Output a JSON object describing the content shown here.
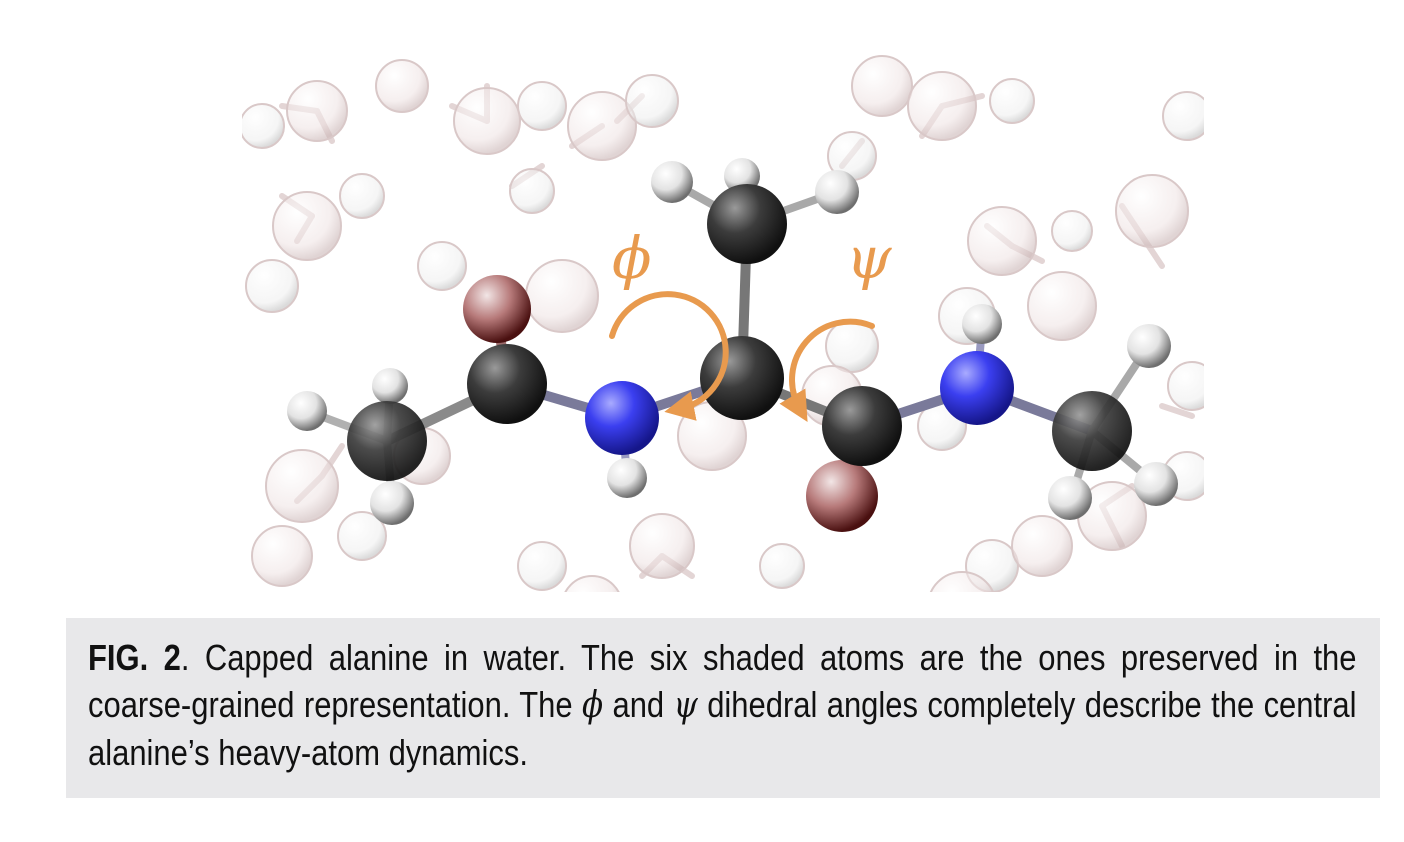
{
  "figure": {
    "phi_symbol": "ϕ",
    "psi_symbol": "ψ",
    "colors": {
      "carbon": "#3a3a3a",
      "nitrogen": "#3b3ff0",
      "oxygen": "#8a3a3a",
      "hydrogen": "#e6e6e6",
      "water": "#e9dcdc",
      "dihedral_arrow": "#e89a4e"
    }
  },
  "caption": {
    "label": "FIG. 2",
    "part1": ". Capped alanine in water. The six shaded atoms are the ones preserved in the coarse-grained representation. The ",
    "phi": "ϕ",
    "part2": " and ",
    "psi": "ψ",
    "part3": " dihedral angles completely describe the central alanine’s heavy-atom dynamics."
  }
}
